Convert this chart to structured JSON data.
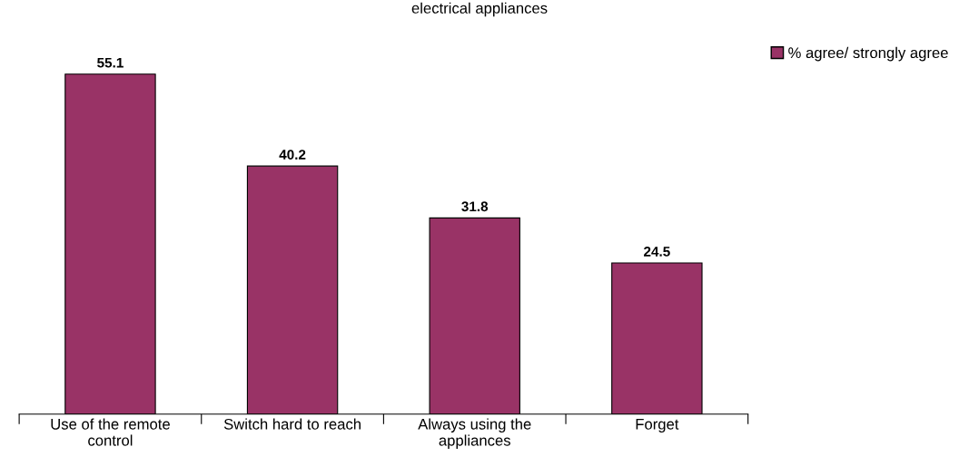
{
  "chart_data": {
    "type": "bar",
    "title": "electrical appliances",
    "categories": [
      "Use of the remote\ncontrol",
      "Switch hard to reach",
      "Always using the\nappliances",
      "Forget"
    ],
    "series": [
      {
        "name": "% agree/ strongly agree",
        "color": "#993366",
        "values": [
          55.1,
          40.2,
          31.8,
          24.5
        ]
      }
    ],
    "data_labels": true,
    "legend": "top right",
    "grid": false
  }
}
